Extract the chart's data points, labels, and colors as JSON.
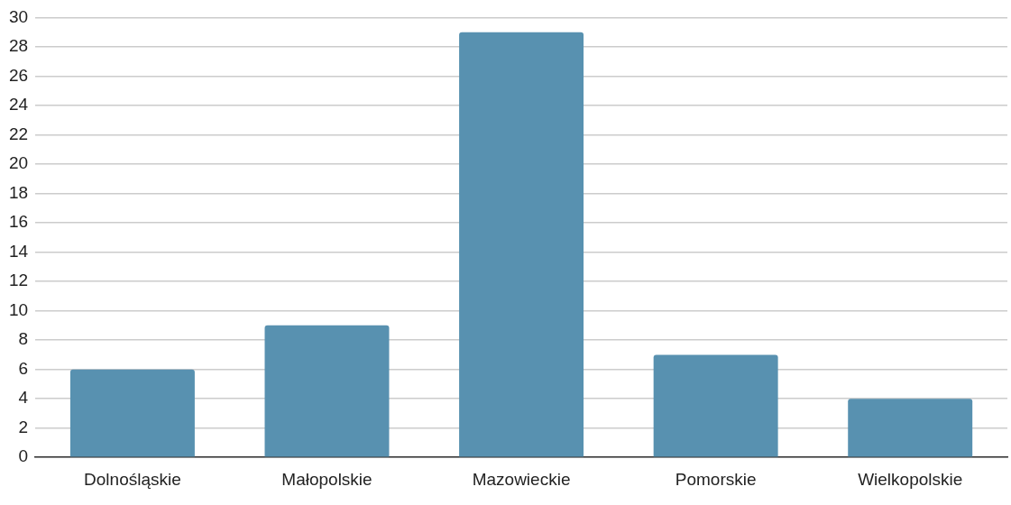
{
  "chart_data": {
    "type": "bar",
    "categories": [
      "Dolnośląskie",
      "Małopolskie",
      "Mazowieckie",
      "Pomorskie",
      "Wielkopolskie"
    ],
    "values": [
      6,
      9,
      29,
      7,
      4
    ],
    "color": "#5891b0",
    "ylim": [
      0,
      30
    ],
    "yticks": [
      0,
      2,
      4,
      6,
      8,
      10,
      12,
      14,
      16,
      18,
      20,
      22,
      24,
      26,
      28,
      30
    ],
    "grid": "y",
    "legend": false
  }
}
